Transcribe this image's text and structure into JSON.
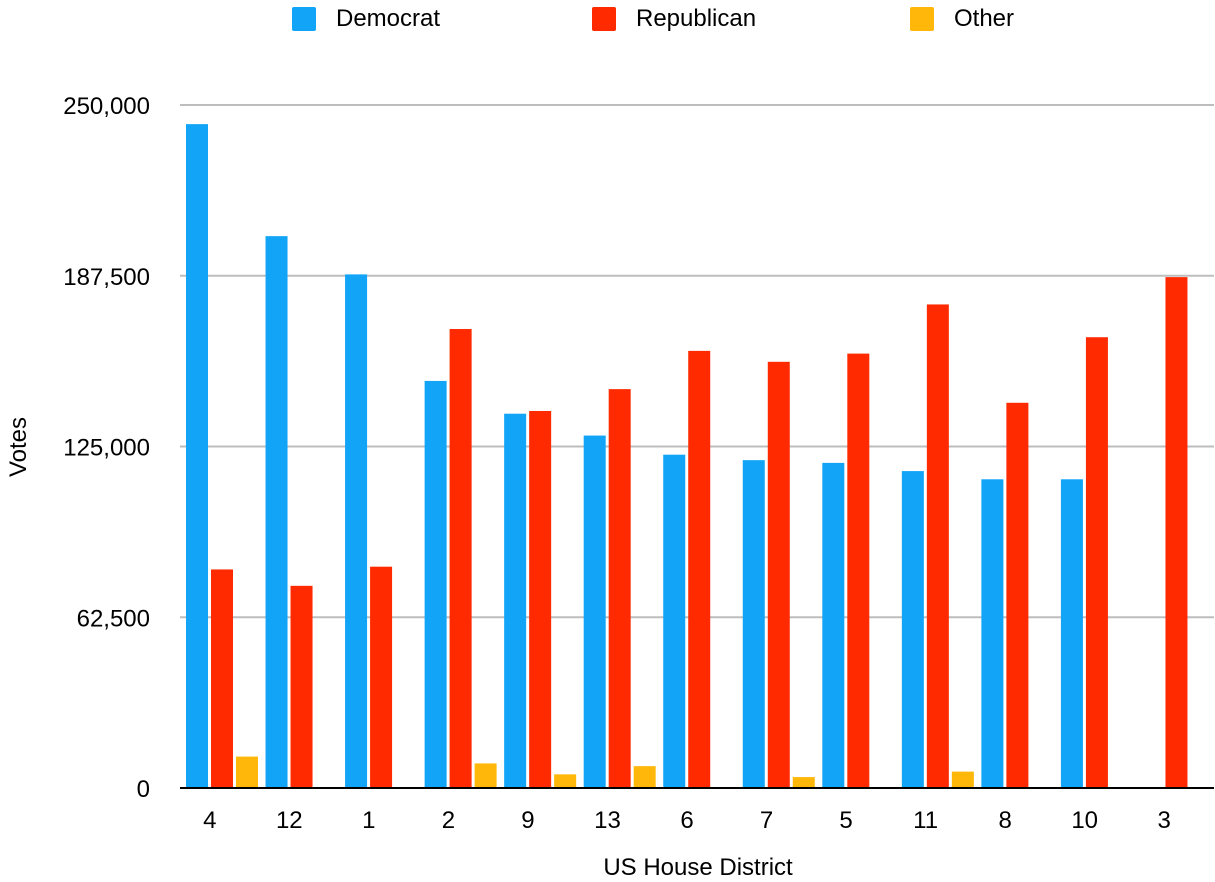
{
  "chart_data": {
    "type": "bar",
    "xlabel": "US House District",
    "ylabel": "Votes",
    "ylim": [
      0,
      250000
    ],
    "yticks": [
      0,
      62500,
      125000,
      187500,
      250000
    ],
    "ytick_labels": [
      "0",
      "62,500",
      "125,000",
      "187,500",
      "250,000"
    ],
    "grid": true,
    "legend_position": "top",
    "categories": [
      "4",
      "12",
      "1",
      "2",
      "9",
      "13",
      "6",
      "7",
      "5",
      "11",
      "8",
      "10",
      "3"
    ],
    "series": [
      {
        "name": "Democrat",
        "color": "#12a4f7",
        "values": [
          243000,
          202000,
          188000,
          149000,
          137000,
          129000,
          122000,
          120000,
          119000,
          116000,
          113000,
          113000,
          0
        ]
      },
      {
        "name": "Republican",
        "color": "#ff2a00",
        "values": [
          80000,
          74000,
          81000,
          168000,
          138000,
          146000,
          160000,
          156000,
          159000,
          177000,
          141000,
          165000,
          187000
        ]
      },
      {
        "name": "Other",
        "color": "#ffb80a",
        "values": [
          11500,
          0,
          0,
          9000,
          5000,
          8000,
          0,
          4000,
          0,
          6000,
          0,
          0,
          0
        ]
      }
    ]
  }
}
